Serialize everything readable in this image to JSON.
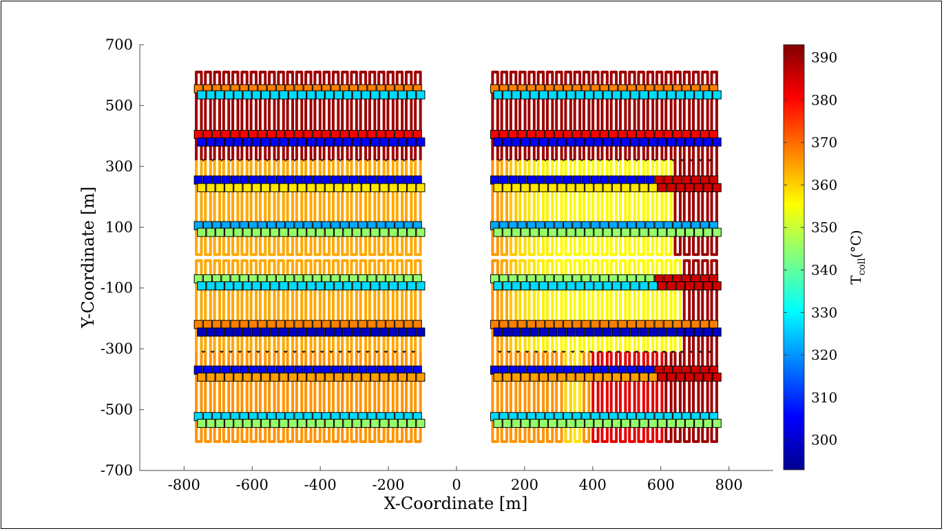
{
  "chart_data": {
    "type": "heatmap",
    "title": "",
    "xlabel": "X-Coordinate [m]",
    "ylabel": "Y-Coordinate [m]",
    "xlim": [
      -930,
      930
    ],
    "ylim": [
      -700,
      700
    ],
    "xticks": [
      -800,
      -600,
      -400,
      -200,
      0,
      200,
      400,
      600,
      800
    ],
    "yticks": [
      -700,
      -500,
      -300,
      -100,
      100,
      300,
      500,
      700
    ],
    "xtick_labels": [
      "-800",
      "-600",
      "-400",
      "-200",
      "0",
      "200",
      "400",
      "600",
      "800"
    ],
    "ytick_labels": [
      "-700",
      "-500",
      "-300",
      "-100",
      "100",
      "300",
      "500",
      "700"
    ],
    "grid": false,
    "colorbar": {
      "label_main": "T",
      "label_sub": "coll",
      "label_unit": "(°C)",
      "range": [
        293,
        393
      ],
      "ticks": [
        300,
        310,
        320,
        330,
        340,
        350,
        360,
        370,
        380,
        390
      ],
      "tick_labels": [
        "300",
        "310",
        "320",
        "330",
        "340",
        "350",
        "360",
        "370",
        "380",
        "390"
      ],
      "colormap": "jet"
    },
    "fields": [
      {
        "name": "west",
        "x_start": -770,
        "x_end": -100,
        "loops": 25
      },
      {
        "name": "east",
        "x_start": 100,
        "x_end": 770,
        "loops": 25
      }
    ],
    "loop_blocks": [
      {
        "y_top": 610,
        "y_bottom": 320,
        "header_y": [
          555,
          535,
          405,
          380
        ]
      },
      {
        "y_top": 320,
        "y_bottom": 10,
        "header_y": [
          255,
          230,
          105,
          83
        ]
      },
      {
        "y_top": -10,
        "y_bottom": -310,
        "header_y": [
          -70,
          -93,
          -220,
          -245
        ]
      },
      {
        "y_top": -310,
        "y_bottom": -605,
        "header_y": [
          -370,
          -393,
          -523,
          -545
        ]
      }
    ],
    "loop_temperature_profiles": {
      "west": [
        390,
        364,
        364,
        366
      ],
      "east_row1": [
        390,
        390,
        390,
        390,
        390,
        390,
        390,
        390,
        390,
        390,
        390,
        390,
        390,
        390,
        390,
        390,
        390,
        390,
        390,
        390,
        390,
        390,
        390,
        390,
        390
      ],
      "east_row2": [
        366,
        364,
        361,
        359,
        358,
        357,
        357,
        356,
        356,
        356,
        356,
        356,
        356,
        356,
        356,
        356,
        356,
        356,
        356,
        356,
        390,
        390,
        390,
        390,
        390
      ],
      "east_row3": [
        366,
        364,
        361,
        359,
        358,
        357,
        357,
        356,
        356,
        356,
        356,
        356,
        356,
        356,
        356,
        356,
        356,
        356,
        356,
        356,
        356,
        390,
        390,
        390,
        390
      ],
      "east_row4": [
        366,
        366,
        366,
        366,
        366,
        366,
        366,
        366,
        360,
        358,
        366,
        383,
        383,
        383,
        383,
        383,
        383,
        383,
        383,
        390,
        390,
        390,
        390,
        390,
        390
      ]
    },
    "header_temperatures": {
      "hot_outlet": 368,
      "hot_inlet_cold": 327,
      "upper_loop_outlet": 381,
      "upper_loop_inlet": 305,
      "mid_inlet_cold": 300,
      "mid_outlet_warm": 357,
      "mid_inlet_cyan": 322,
      "mid_outlet_green": 345,
      "east_fade_hot": 385
    }
  }
}
